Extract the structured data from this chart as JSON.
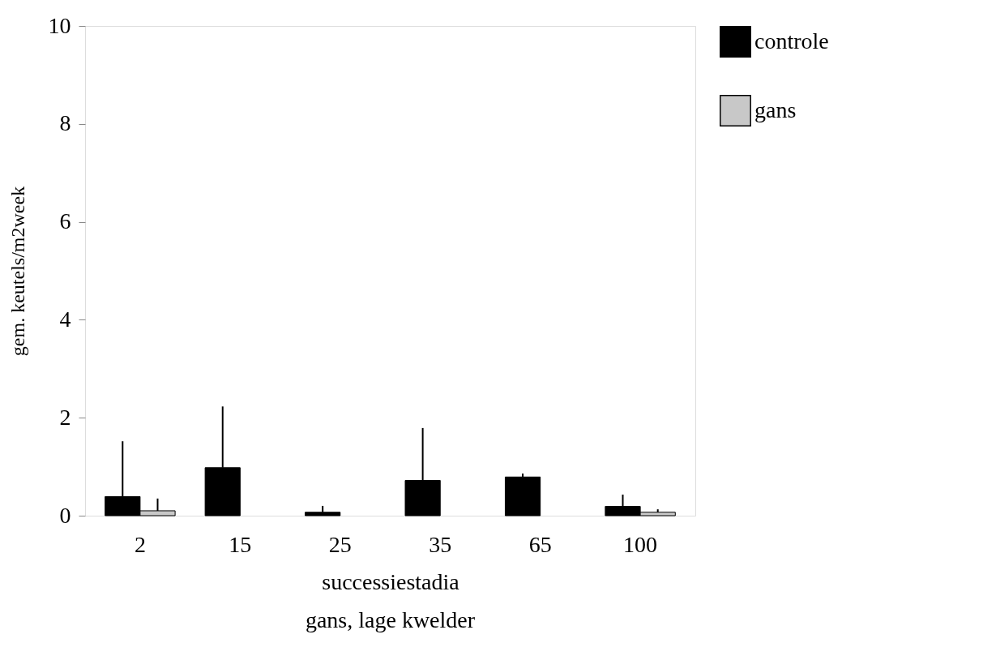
{
  "chart_data": {
    "type": "bar",
    "title": "gans, lage kwelder",
    "xlabel": "successiestadia",
    "ylabel": "gem. keutels/m2week",
    "categories": [
      "2",
      "15",
      "25",
      "35",
      "65",
      "100"
    ],
    "series": [
      {
        "name": "controle",
        "color": "#000000",
        "values": [
          0.39,
          0.98,
          0.07,
          0.72,
          0.79,
          0.19
        ],
        "errors": [
          [
            0.39,
            1.52
          ],
          [
            0.98,
            2.23
          ],
          [
            0.07,
            0.2
          ],
          [
            0.72,
            1.79
          ],
          [
            0.79,
            0.86
          ],
          [
            0.19,
            0.43
          ]
        ]
      },
      {
        "name": "gans",
        "color": "#c8c8c8",
        "values": [
          0.1,
          0,
          0,
          0,
          0,
          0.07
        ],
        "errors": [
          [
            0.1,
            0.35
          ],
          null,
          null,
          null,
          null,
          [
            0.07,
            0.13
          ]
        ]
      }
    ],
    "ylim": [
      0,
      10
    ],
    "yticks": [
      0,
      2,
      4,
      6,
      8,
      10
    ],
    "grid": false,
    "legend": "right"
  }
}
